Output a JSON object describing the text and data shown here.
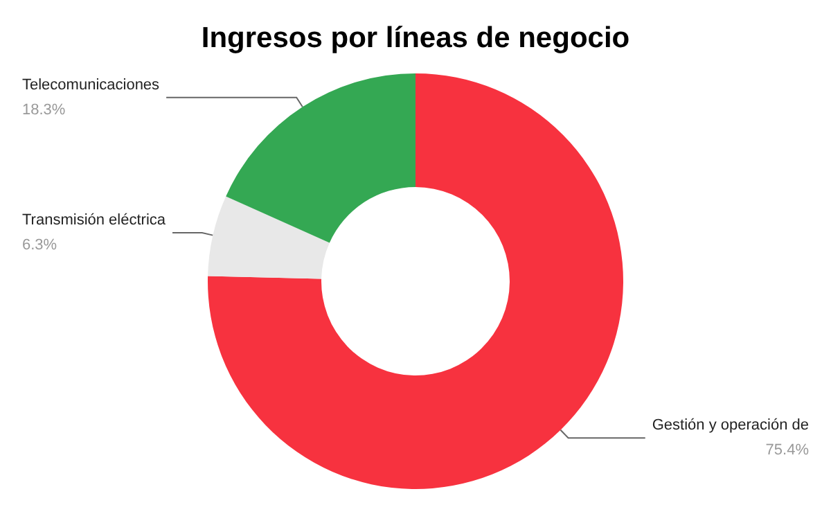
{
  "chart_data": {
    "type": "donut",
    "title": "Ingresos por líneas de negocio",
    "categories": [
      "Gestión y operación de",
      "Transmisión eléctrica",
      "Telecomunicaciones"
    ],
    "values": [
      75.4,
      6.3,
      18.3
    ],
    "value_labels": [
      "75.4%",
      "6.3%",
      "18.3%"
    ],
    "colors": [
      "#f7323f",
      "#e8e8e8",
      "#34a853"
    ],
    "legend": false
  }
}
